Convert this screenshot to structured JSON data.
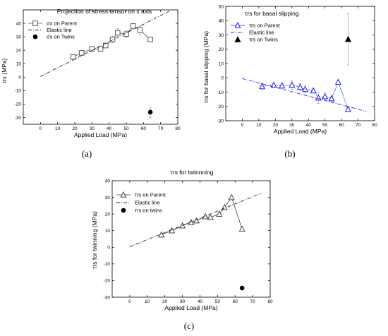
{
  "chart_data": [
    {
      "id": "a",
      "type": "scatter",
      "caption": "(a)",
      "title": "Projection of stress tensor on x axis",
      "xlabel": "Applied Load (MPa)",
      "ylabel": "σx (MPa)",
      "xlim": [
        -10,
        80
      ],
      "ylim": [
        -35,
        50
      ],
      "xticks": [
        0,
        10,
        20,
        30,
        40,
        50,
        60,
        70,
        80
      ],
      "yticks": [
        -30,
        -20,
        -10,
        0,
        10,
        20,
        30,
        40
      ],
      "grid": false,
      "legend_position": "top-left",
      "colors": {
        "parent": "#555555",
        "elastic": "#222222",
        "twins": "#000000"
      },
      "series": [
        {
          "name": "σx on Parent",
          "kind": "line-marker",
          "marker": "square-open",
          "points": [
            [
              19,
              15
            ],
            [
              24,
              18
            ],
            [
              30,
              21
            ],
            [
              35,
              21
            ],
            [
              38,
              23.5
            ],
            [
              42,
              28
            ],
            [
              45,
              33
            ],
            [
              50,
              32
            ],
            [
              54,
              38
            ],
            [
              58,
              35
            ],
            [
              64,
              28
            ]
          ],
          "errors": [
            1.5,
            1.5,
            1.8,
            1.8,
            1.8,
            2.5,
            3,
            2.5,
            1.8,
            3,
            1.5
          ]
        },
        {
          "name": "Elastic line",
          "kind": "dashdot",
          "points": [
            [
              0,
              0.5
            ],
            [
              75,
              49
            ]
          ]
        },
        {
          "name": "σx on Twins",
          "kind": "marker",
          "marker": "circle-filled",
          "points": [
            [
              64,
              -26
            ]
          ],
          "errors": [
            4
          ]
        }
      ]
    },
    {
      "id": "b",
      "type": "scatter",
      "caption": "(b)",
      "title": "",
      "xlabel": "Applied Load (MPa)",
      "ylabel": "τrs for basal slipping (MPa)",
      "xlim": [
        -10,
        80
      ],
      "ylim": [
        -30,
        50
      ],
      "xticks": [
        0,
        10,
        20,
        30,
        40,
        50,
        60,
        70,
        80
      ],
      "yticks": [
        -30,
        -20,
        -10,
        0,
        10,
        20,
        30,
        40,
        50
      ],
      "grid": false,
      "legend_position": "top-left",
      "legend_title": "τrs  for basal slipping",
      "colors": {
        "parent": "#1a1aff",
        "elastic": "#1a1aff",
        "twins": "#000000"
      },
      "series": [
        {
          "name": "τrs on Parent",
          "kind": "line-marker",
          "marker": "triangle-open",
          "points": [
            [
              12,
              -6
            ],
            [
              19,
              -5
            ],
            [
              24,
              -5.5
            ],
            [
              30,
              -5
            ],
            [
              35,
              -6.5
            ],
            [
              38,
              -8
            ],
            [
              43,
              -9
            ],
            [
              46,
              -14
            ],
            [
              50,
              -13
            ],
            [
              54,
              -14.5
            ],
            [
              58,
              -3
            ],
            [
              64,
              -22
            ]
          ],
          "errors": [
            2.5,
            1.2,
            1.8,
            3,
            2.5,
            2.5,
            1.5,
            4,
            2.5,
            2.5,
            1.5,
            0
          ]
        },
        {
          "name": "Elastic line",
          "kind": "dashdot",
          "points": [
            [
              0,
              -0.5
            ],
            [
              75,
              -23.5
            ]
          ]
        },
        {
          "name": "τrs on Twins",
          "kind": "marker",
          "marker": "triangle-filled",
          "points": [
            [
              64,
              27
            ]
          ],
          "errors": [
            18
          ]
        }
      ]
    },
    {
      "id": "c",
      "type": "scatter",
      "caption": "(c)",
      "title": "τrs for twinnning",
      "xlabel": "Applied Load (MPa)",
      "ylabel": "τrs for twinning (MPa)",
      "xlim": [
        -10,
        80
      ],
      "ylim": [
        -30,
        40
      ],
      "xticks": [
        0,
        10,
        20,
        30,
        40,
        50,
        60,
        70,
        80
      ],
      "yticks": [
        -30,
        -20,
        -10,
        0,
        10,
        20,
        30,
        40
      ],
      "grid": false,
      "legend_position": "top-left",
      "colors": {
        "parent": "#444444",
        "elastic": "#222222",
        "twins": "#000000"
      },
      "series": [
        {
          "name": "τrs on Parent",
          "kind": "line-marker",
          "marker": "triangle-open",
          "points": [
            [
              18,
              7.5
            ],
            [
              24,
              10
            ],
            [
              30,
              13
            ],
            [
              35,
              15
            ],
            [
              38,
              16
            ],
            [
              43,
              18.5
            ],
            [
              46,
              18
            ],
            [
              51,
              20
            ],
            [
              54,
              24
            ],
            [
              58,
              30
            ],
            [
              64,
              11
            ]
          ]
        },
        {
          "name": "Elastic line",
          "kind": "dashdot",
          "points": [
            [
              0,
              0.3
            ],
            [
              75,
              32.5
            ]
          ]
        },
        {
          "name": "τrs on twins",
          "kind": "marker",
          "marker": "circle-filled",
          "points": [
            [
              64,
              -24.5
            ]
          ]
        }
      ]
    }
  ]
}
